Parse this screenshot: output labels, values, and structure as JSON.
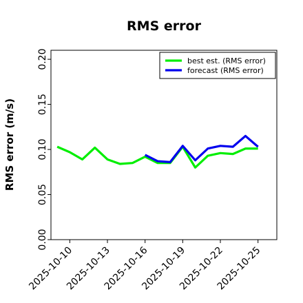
{
  "chart_data": {
    "type": "line",
    "title": "RMS error",
    "xlabel": "",
    "ylabel": "RMS error (m/s)",
    "ylim": [
      0.0,
      0.21
    ],
    "yticks": [
      "0.00",
      "0.05",
      "0.10",
      "0.15",
      "0.20"
    ],
    "ytick_values": [
      0.0,
      0.05,
      0.1,
      0.15,
      0.2
    ],
    "xlim": [
      "2025-10-08 12:00",
      "2025-10-26 12:00"
    ],
    "xticks": [
      {
        "label": "2025-10-10",
        "date": "2025-10-10",
        "color": "#000000"
      },
      {
        "label": "2025-10-13",
        "date": "2025-10-13",
        "color": "#000000"
      },
      {
        "label": "2025-10-16",
        "date": "2025-10-16",
        "color": "#228B22"
      },
      {
        "label": "2025-10-19",
        "date": "2025-10-19",
        "color": "#000000"
      },
      {
        "label": "2025-10-22",
        "date": "2025-10-22",
        "color": "#000000"
      },
      {
        "label": "2025-10-25",
        "date": "2025-10-25",
        "color": "#000000"
      }
    ],
    "grid": false,
    "legend_position": "top-right",
    "series": [
      {
        "name": "best est. (RMS error)",
        "color": "#00ee00",
        "x": [
          "2025-10-09",
          "2025-10-10",
          "2025-10-11",
          "2025-10-12",
          "2025-10-13",
          "2025-10-14",
          "2025-10-15",
          "2025-10-16",
          "2025-10-17",
          "2025-10-18",
          "2025-10-19",
          "2025-10-20",
          "2025-10-21",
          "2025-10-22",
          "2025-10-23",
          "2025-10-24",
          "2025-10-25"
        ],
        "y": [
          0.103,
          0.097,
          0.089,
          0.102,
          0.089,
          0.084,
          0.085,
          0.092,
          0.085,
          0.085,
          0.103,
          0.08,
          0.093,
          0.096,
          0.095,
          0.101,
          0.101
        ]
      },
      {
        "name": "forecast (RMS error)",
        "color": "#0000ee",
        "x": [
          "2025-10-16",
          "2025-10-17",
          "2025-10-18",
          "2025-10-19",
          "2025-10-20",
          "2025-10-21",
          "2025-10-22",
          "2025-10-23",
          "2025-10-24",
          "2025-10-25"
        ],
        "y": [
          0.094,
          0.087,
          0.086,
          0.104,
          0.088,
          0.101,
          0.104,
          0.103,
          0.115,
          0.103
        ]
      }
    ]
  }
}
